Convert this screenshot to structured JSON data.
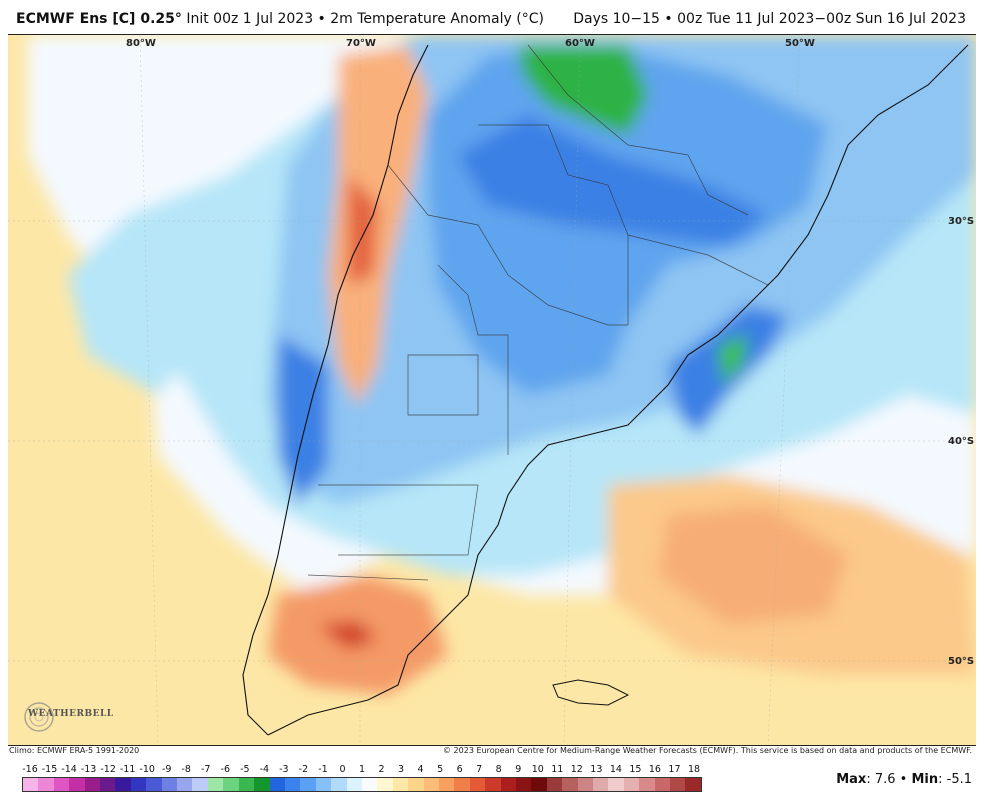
{
  "header": {
    "model": "ECMWF Ens [C] 0.25",
    "degree_sym": "°",
    "init": " Init 00z 1 Jul 2023 • 2m Temperature Anomaly (°C)",
    "valid": "Days 10−15 • 00z Tue 11 Jul 2023−00z Sun 16 Jul 2023"
  },
  "map": {
    "lon_labels": [
      "80°W",
      "70°W",
      "60°W",
      "50°W"
    ],
    "lat_labels": [
      "30°S",
      "40°S",
      "50°S"
    ]
  },
  "logo": {
    "text": "WEATHERBELL"
  },
  "footer": {
    "climo": "Climo: ECMWF ERA-5 1991-2020",
    "copyright": "© 2023 European Centre for Medium-Range Weather Forecasts (ECMWF). This service is based on data and products of the ECMWF."
  },
  "colorbar": {
    "ticks": [
      "-16",
      "-15",
      "-14",
      "-13",
      "-12",
      "-11",
      "-10",
      "-9",
      "-8",
      "-7",
      "-6",
      "-5",
      "-4",
      "-3",
      "-2",
      "-1",
      "0",
      "1",
      "2",
      "3",
      "4",
      "5",
      "6",
      "7",
      "8",
      "9",
      "10",
      "11",
      "12",
      "13",
      "14",
      "15",
      "16",
      "17",
      "18"
    ],
    "colors": [
      "#f7b4e8",
      "#ee86d8",
      "#de56c4",
      "#c42ea6",
      "#9a1d8c",
      "#6a1a8a",
      "#3a1a9c",
      "#3236c0",
      "#4a5ad4",
      "#6e80e2",
      "#98a6ee",
      "#bccbf7",
      "#9ee6a6",
      "#6cd47e",
      "#38b84e",
      "#13962e",
      "#2266dd",
      "#3a82ee",
      "#5aa0f4",
      "#86c0f8",
      "#b0dcfa",
      "#dcf2fd",
      "#f8fcff",
      "#fff7d0",
      "#fde8a8",
      "#fcd58a",
      "#fbbd78",
      "#f7a060",
      "#f07e48",
      "#e45a36",
      "#cc3a2a",
      "#ad1e1e",
      "#8a1414",
      "#6e0a0a",
      "#9a3a3a",
      "#b66060",
      "#cc8484",
      "#deaaaa",
      "#f0cccc",
      "#e4b0b0",
      "#d88a8a",
      "#c86868",
      "#b04848",
      "#9a2a2a"
    ]
  },
  "stats": {
    "max_label": "Max",
    "max_value": ": 7.6 • ",
    "min_label": "Min",
    "min_value": ": -5.1"
  }
}
